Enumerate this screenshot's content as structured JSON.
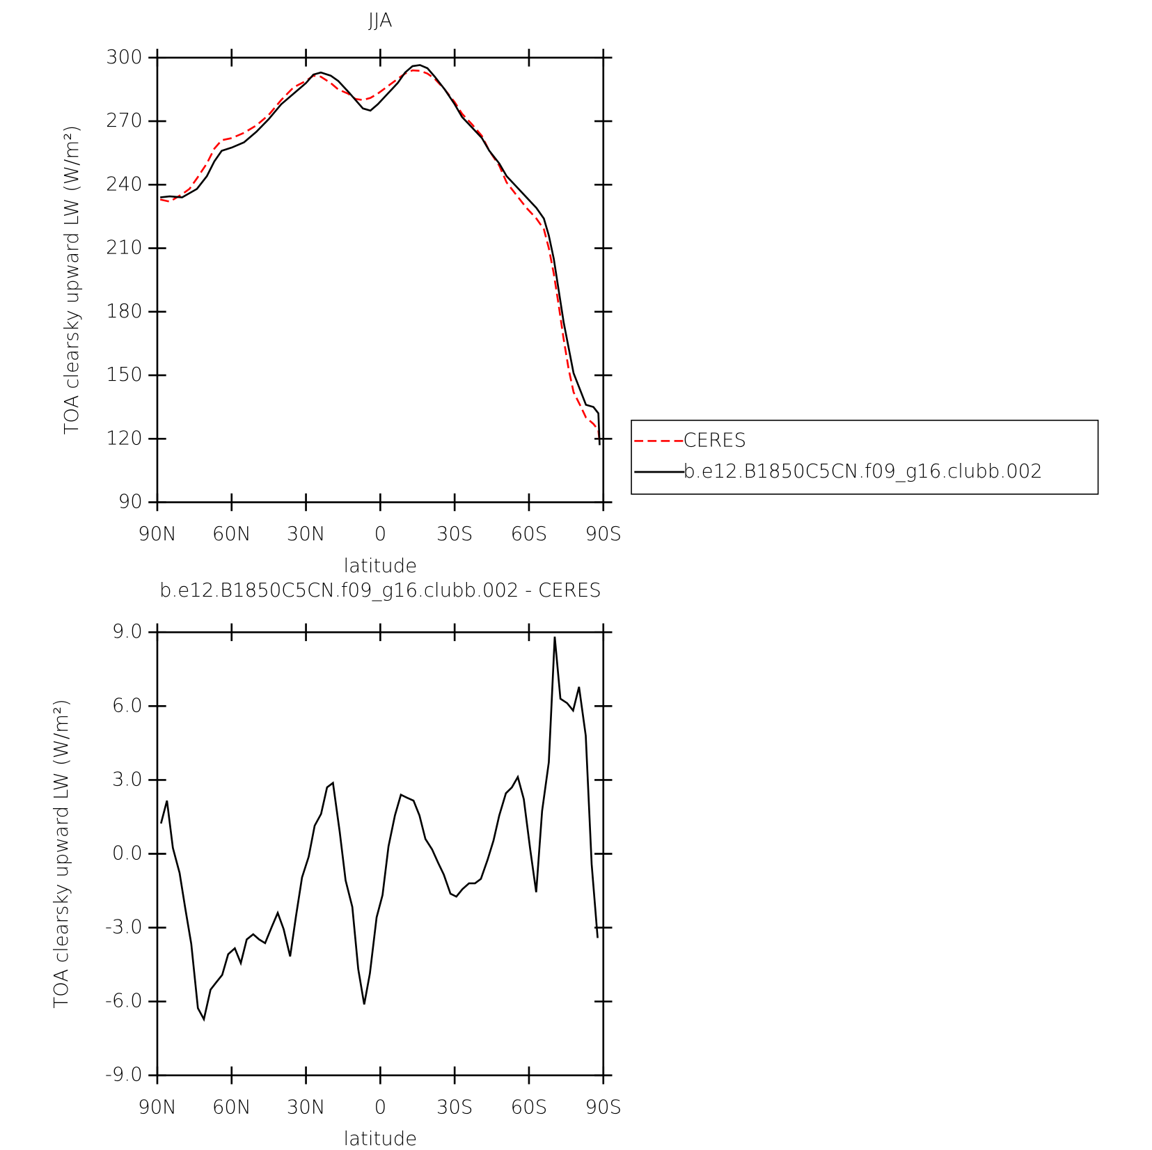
{
  "chart_data": [
    {
      "type": "line",
      "title": "JJA",
      "x_label": "latitude",
      "y_label": "TOA clearsky upward LW (W/m²)",
      "xlim": [
        90,
        -90
      ],
      "xticks": [
        {
          "value": 90,
          "label": "90N"
        },
        {
          "value": 60,
          "label": "60N"
        },
        {
          "value": 30,
          "label": "30N"
        },
        0,
        {
          "value": -30,
          "label": "30S"
        },
        {
          "value": -60,
          "label": "60S"
        },
        {
          "value": -90,
          "label": "90S"
        }
      ],
      "ylim": [
        90,
        300
      ],
      "yticks": [
        90,
        120,
        150,
        180,
        210,
        240,
        270,
        300
      ],
      "legend": "right",
      "x": [
        88.8,
        85,
        80,
        77,
        74,
        70,
        67,
        64,
        60,
        55,
        50,
        45,
        40,
        35,
        30,
        27,
        24,
        20,
        17,
        13,
        10,
        7,
        4,
        1,
        -3,
        -7,
        -10,
        -13,
        -16,
        -19,
        -22,
        -26,
        -30,
        -33,
        -37,
        -41,
        -44,
        -48,
        -51,
        -55,
        -59,
        -63,
        -66,
        -68,
        -70,
        -72,
        -74,
        -76,
        -78,
        -81,
        -83,
        -86,
        -88,
        -88.5
      ],
      "series": [
        {
          "name": "CERES",
          "color": "#ff0000",
          "line_style": "dashed",
          "values": [
            233,
            232,
            235.5,
            238,
            243,
            250,
            257,
            261,
            262,
            264.5,
            268,
            273,
            280,
            286,
            289,
            291.5,
            291,
            288,
            285,
            283,
            280.5,
            280,
            281,
            283,
            286.5,
            290,
            292.5,
            294,
            293.8,
            292.5,
            290,
            285,
            279,
            273.5,
            268.5,
            263,
            256,
            249,
            241,
            235,
            229,
            224,
            219,
            210,
            198,
            183,
            167,
            153,
            142,
            135,
            130,
            127,
            124,
            118
          ]
        },
        {
          "name": "b.e12.B1850C5CN.f09_g16.clubb.002",
          "color": "#000000",
          "line_style": "solid",
          "values": [
            234,
            234.5,
            234,
            236,
            238,
            244,
            251,
            256,
            257.5,
            260,
            265,
            271,
            278,
            283,
            288,
            292,
            293,
            291.5,
            289,
            284,
            280,
            276,
            275,
            278,
            283,
            288,
            293,
            296,
            296.5,
            295,
            291,
            285,
            278,
            272,
            267,
            262,
            256,
            250,
            244,
            239,
            234,
            229,
            224,
            216,
            205,
            190,
            175,
            163,
            151,
            142,
            136,
            135,
            132,
            117
          ]
        }
      ]
    },
    {
      "type": "line",
      "title": "b.e12.B1850C5CN.f09_g16.clubb.002 - CERES",
      "x_label": "latitude",
      "y_label": "TOA clearsky upward LW (W/m²)",
      "xlim": [
        90,
        -90
      ],
      "xticks": [
        {
          "value": 90,
          "label": "90N"
        },
        {
          "value": 60,
          "label": "60N"
        },
        {
          "value": 30,
          "label": "30N"
        },
        0,
        {
          "value": -30,
          "label": "30S"
        },
        {
          "value": -60,
          "label": "60S"
        },
        {
          "value": -90,
          "label": "90S"
        }
      ],
      "ylim": [
        -9,
        9
      ],
      "yticks": [
        {
          "value": -9,
          "label": "-9.0"
        },
        {
          "value": -6,
          "label": "-6.0"
        },
        {
          "value": -3,
          "label": "-3.0"
        },
        {
          "value": 0,
          "label": "0.0"
        },
        {
          "value": 3,
          "label": "3.0"
        },
        {
          "value": 6,
          "label": "6.0"
        },
        {
          "value": 9,
          "label": "9.0"
        }
      ],
      "color": "#000000",
      "x": [
        88.5,
        86.1,
        83.7,
        81,
        78.7,
        76.3,
        73.6,
        71.2,
        68.5,
        66.2,
        63.8,
        61.4,
        58.7,
        56.3,
        53.9,
        51.3,
        48.9,
        46.5,
        43.8,
        41.4,
        39,
        36.4,
        34,
        31.6,
        28.9,
        26.5,
        23.9,
        21.5,
        19.1,
        16.4,
        14,
        11.3,
        8.9,
        6.5,
        4.2,
        1.5,
        -0.9,
        -3.3,
        -5.9,
        -8.3,
        -10.7,
        -13.4,
        -15.8,
        -18.2,
        -20.9,
        -23.3,
        -25.6,
        -28.3,
        -30.7,
        -33.1,
        -35.8,
        -38.2,
        -40.6,
        -43.3,
        -45.7,
        -48,
        -50.7,
        -53.1,
        -55.5,
        -57.9,
        -60.5,
        -62.9,
        -65.3,
        -68,
        -70.4,
        -72.7,
        -75.4,
        -77.8,
        -80.2,
        -82.9,
        -85.3,
        -87.7
      ],
      "values": [
        1.23,
        2.16,
        0.24,
        -0.78,
        -2.22,
        -3.66,
        -6.27,
        -6.72,
        -5.52,
        -5.22,
        -4.92,
        -4.08,
        -3.84,
        -4.44,
        -3.48,
        -3.27,
        -3.48,
        -3.63,
        -2.97,
        -2.4,
        -3.06,
        -4.17,
        -2.52,
        -0.96,
        -0.12,
        1.14,
        1.62,
        2.7,
        2.88,
        0.9,
        -1.08,
        -2.16,
        -4.68,
        -6.12,
        -4.86,
        -2.58,
        -1.68,
        0.3,
        1.56,
        2.4,
        2.28,
        2.16,
        1.56,
        0.6,
        0.18,
        -0.36,
        -0.84,
        -1.62,
        -1.74,
        -1.44,
        -1.2,
        -1.2,
        -1.02,
        -0.24,
        0.54,
        1.56,
        2.46,
        2.7,
        3.12,
        2.22,
        0.18,
        -1.56,
        1.74,
        3.72,
        8.82,
        6.3,
        6.12,
        5.82,
        6.78,
        4.8,
        -0.42,
        -3.42
      ]
    }
  ]
}
